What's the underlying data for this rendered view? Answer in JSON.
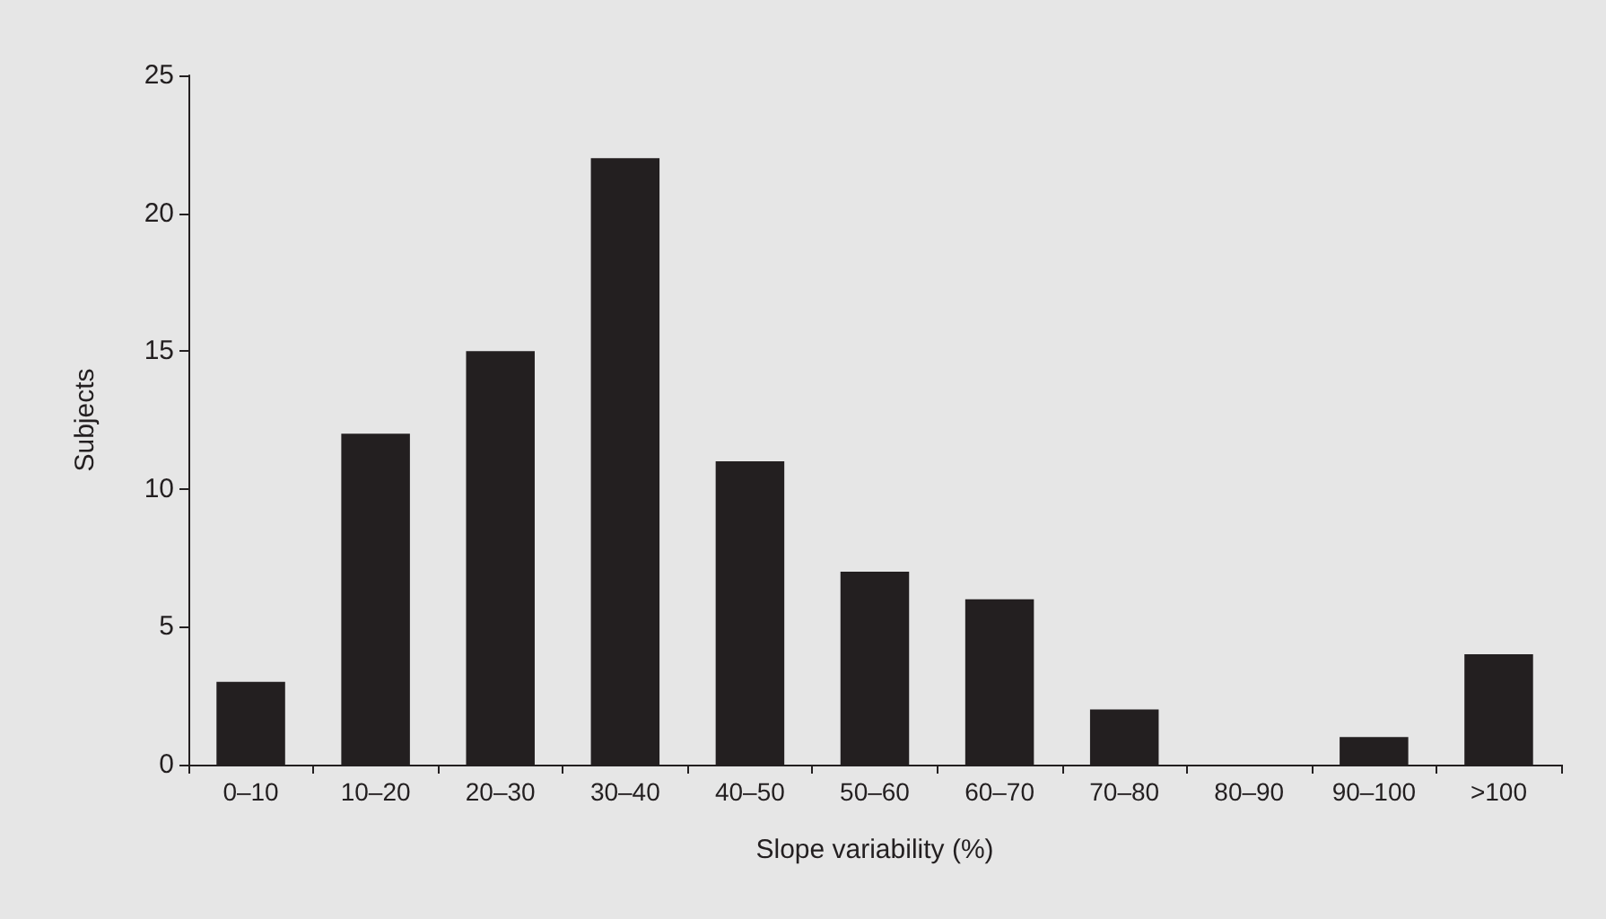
{
  "chart_data": {
    "type": "bar",
    "xlabel": "Slope variability (%)",
    "ylabel": "Subjects",
    "categories": [
      "0–10",
      "10–20",
      "20–30",
      "30–40",
      "40–50",
      "50–60",
      "60–70",
      "70–80",
      "80–90",
      "90–100",
      ">100"
    ],
    "values": [
      3,
      12,
      15,
      22,
      11,
      7,
      6,
      2,
      0,
      1,
      4
    ],
    "color": "#231f20",
    "ylim": [
      0,
      25
    ],
    "yticks": [
      0,
      5,
      10,
      15,
      20,
      25
    ],
    "grid": false
  }
}
